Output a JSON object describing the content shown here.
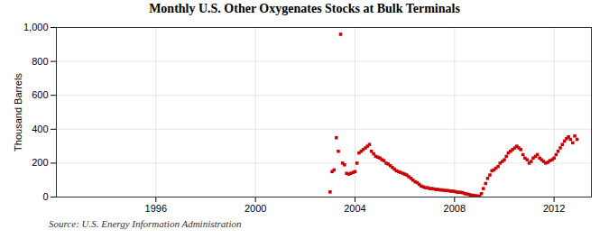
{
  "chart_data": {
    "type": "scatter",
    "title": "Monthly U.S. Other Oxygenates Stocks at Bulk Terminals",
    "ylabel": "Thousand Barrels",
    "caption": "Source: U.S. Energy Information Administration",
    "color": "#CC0000",
    "marker": "square",
    "grid": true,
    "xlim": [
      1992.0,
      2013.5
    ],
    "xticks": [
      1996,
      2000,
      2004,
      2008,
      2012
    ],
    "ylim": [
      0,
      1000
    ],
    "yticks": [
      0,
      200,
      400,
      600,
      800,
      {
        "value": 1000,
        "label": "1,000"
      }
    ],
    "x": [
      2003.0,
      2003.08,
      2003.16,
      2003.25,
      2003.33,
      2003.42,
      2003.5,
      2003.58,
      2003.66,
      2003.75,
      2003.83,
      2003.92,
      2004.0,
      2004.08,
      2004.16,
      2004.25,
      2004.33,
      2004.42,
      2004.5,
      2004.58,
      2004.66,
      2004.75,
      2004.83,
      2004.92,
      2005.0,
      2005.08,
      2005.16,
      2005.25,
      2005.33,
      2005.42,
      2005.5,
      2005.58,
      2005.66,
      2005.75,
      2005.83,
      2005.92,
      2006.0,
      2006.08,
      2006.16,
      2006.25,
      2006.33,
      2006.42,
      2006.5,
      2006.58,
      2006.66,
      2006.75,
      2006.83,
      2006.92,
      2007.0,
      2007.08,
      2007.16,
      2007.25,
      2007.33,
      2007.42,
      2007.5,
      2007.58,
      2007.66,
      2007.75,
      2007.83,
      2007.92,
      2008.0,
      2008.08,
      2008.16,
      2008.25,
      2008.33,
      2008.42,
      2008.5,
      2008.58,
      2008.66,
      2008.75,
      2008.83,
      2008.92,
      2009.0,
      2009.08,
      2009.16,
      2009.25,
      2009.33,
      2009.42,
      2009.5,
      2009.58,
      2009.66,
      2009.75,
      2009.83,
      2009.92,
      2010.0,
      2010.08,
      2010.16,
      2010.25,
      2010.33,
      2010.42,
      2010.5,
      2010.58,
      2010.66,
      2010.75,
      2010.83,
      2010.92,
      2011.0,
      2011.08,
      2011.16,
      2011.25,
      2011.33,
      2011.42,
      2011.5,
      2011.58,
      2011.66,
      2011.75,
      2011.83,
      2011.92,
      2012.0,
      2012.08,
      2012.16,
      2012.25,
      2012.33,
      2012.42,
      2012.5,
      2012.58,
      2012.66,
      2012.75,
      2012.83,
      2012.92
    ],
    "values": [
      30,
      150,
      160,
      350,
      270,
      960,
      200,
      190,
      140,
      135,
      140,
      145,
      150,
      200,
      260,
      270,
      280,
      290,
      300,
      310,
      270,
      255,
      240,
      235,
      230,
      220,
      215,
      200,
      195,
      185,
      175,
      165,
      155,
      150,
      145,
      140,
      135,
      130,
      120,
      110,
      100,
      90,
      85,
      75,
      65,
      60,
      55,
      55,
      50,
      50,
      48,
      45,
      45,
      42,
      42,
      40,
      38,
      38,
      35,
      35,
      33,
      30,
      28,
      28,
      25,
      20,
      18,
      15,
      12,
      10,
      8,
      6,
      5,
      20,
      50,
      80,
      110,
      130,
      155,
      160,
      170,
      180,
      200,
      210,
      220,
      240,
      260,
      270,
      280,
      290,
      300,
      290,
      280,
      250,
      230,
      220,
      200,
      210,
      230,
      240,
      250,
      230,
      220,
      210,
      200,
      205,
      215,
      220,
      230,
      250,
      270,
      290,
      310,
      330,
      345,
      355,
      340,
      320,
      360,
      340
    ]
  }
}
